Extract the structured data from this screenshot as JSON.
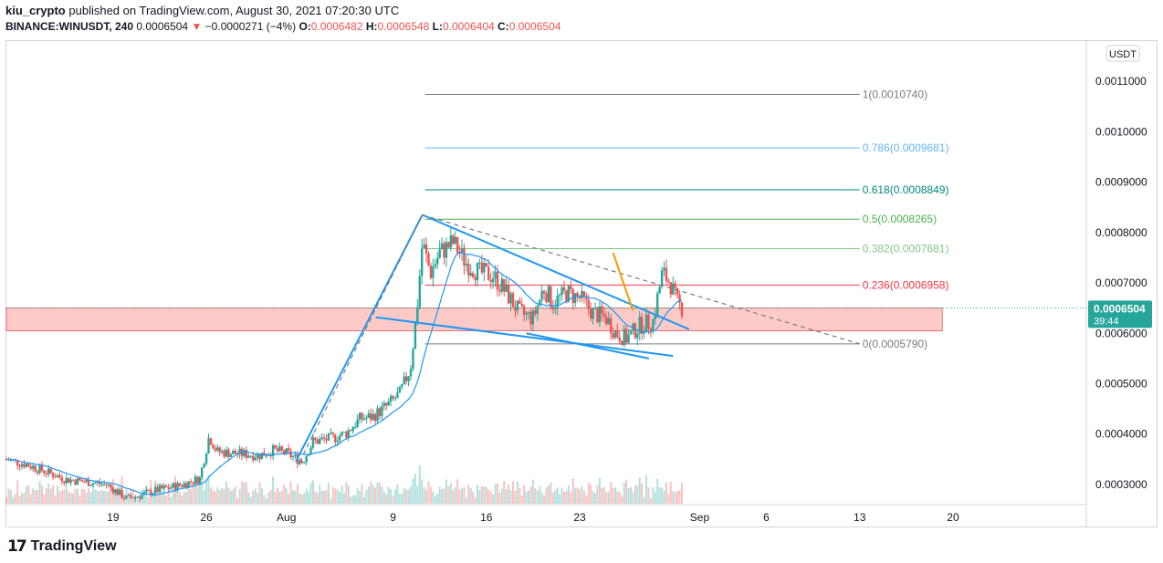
{
  "header": {
    "author": "kiu_crypto",
    "published_text": "published on TradingView.com, August 30, 2021 07:20:30 UTC",
    "symbol": "BINANCE:WINUSDT, 240",
    "last_price": "0.0006504",
    "change_arrow": "▼",
    "change": "−0.0000271 (−4%)",
    "o_label": "O:",
    "o_value": "0.0006482",
    "h_label": "H:",
    "h_value": "0.0006548",
    "l_label": "L:",
    "l_value": "0.0006404",
    "c_label": "C:",
    "c_value": "0.0006504"
  },
  "footer": {
    "logo_icon": "tradingview-logo-icon",
    "brand": "TradingView"
  },
  "colors": {
    "up": "#26a69a",
    "down": "#ef5350",
    "ma": "#2196f3",
    "trend": "#2196f3",
    "orange": "#ff9800",
    "zone_fill": "rgba(244,67,54,0.28)",
    "zone_stroke": "#e57373",
    "price_tag": "#26a69a",
    "grid": "#f0f3fa"
  },
  "chart_data": {
    "type": "candlestick",
    "currency_button": "USDT",
    "price_tag": {
      "price": "0.0006504",
      "countdown": "39:44"
    },
    "y_ticks": [
      "0.0011000",
      "0.0010000",
      "0.0009000",
      "0.0008000",
      "0.0007000",
      "0.0006000",
      "0.0005000",
      "0.0004000",
      "0.0003000"
    ],
    "y_tick_values": [
      0.0011,
      0.001,
      0.0009,
      0.0008,
      0.0007,
      0.0006,
      0.0005,
      0.0004,
      0.0003
    ],
    "ylim": [
      0.00026,
      0.00118
    ],
    "x_ticks": [
      "19",
      "26",
      "Aug",
      "9",
      "16",
      "23",
      "Sep",
      "6",
      "13",
      "20"
    ],
    "x_tick_days": [
      19,
      26,
      32,
      40,
      47,
      54,
      63,
      68,
      75,
      82
    ],
    "xlim": [
      11,
      92
    ],
    "fib_levels": [
      {
        "label": "1(0.0010740)",
        "value": 0.001074,
        "color": "#787b86"
      },
      {
        "label": "0.786(0.0009681)",
        "value": 0.0009681,
        "color": "#64b5f6"
      },
      {
        "label": "0.618(0.0008849)",
        "value": 0.0008849,
        "color": "#00897b"
      },
      {
        "label": "0.5(0.0008265)",
        "value": 0.0008265,
        "color": "#4caf50"
      },
      {
        "label": "0.382(0.0007681)",
        "value": 0.0007681,
        "color": "#81c784"
      },
      {
        "label": "0.236(0.0006958)",
        "value": 0.0006958,
        "color": "#f23645"
      },
      {
        "label": "0(0.0005790)",
        "value": 0.000579,
        "color": "#787b86"
      }
    ],
    "fib_range_days": [
      42.4,
      75.0
    ],
    "zone": {
      "top": 0.00065,
      "bottom": 0.000605,
      "start_day": 11,
      "end_day": 81.2
    },
    "trendlines": [
      {
        "name": "pole",
        "points": [
          [
            32.7,
            0.000345
          ],
          [
            42.2,
            0.000835
          ]
        ],
        "color": "#2196f3",
        "dash": false
      },
      {
        "name": "upper-flag",
        "points": [
          [
            42.2,
            0.000835
          ],
          [
            62.2,
            0.000608
          ]
        ],
        "color": "#2196f3",
        "dash": false
      },
      {
        "name": "lower-flag",
        "points": [
          [
            38.7,
            0.000632
          ],
          [
            61.0,
            0.000555
          ]
        ],
        "color": "#2196f3",
        "dash": false
      },
      {
        "name": "mid-line",
        "points": [
          [
            50,
            0.0006
          ],
          [
            59.2,
            0.00055
          ]
        ],
        "color": "#2196f3",
        "dash": false
      },
      {
        "name": "dashed-top",
        "points": [
          [
            42.2,
            0.000835
          ],
          [
            75.0,
            0.000579
          ]
        ],
        "color": "#787b86",
        "dash": true
      },
      {
        "name": "dashed-left",
        "points": [
          [
            33.0,
            0.000345
          ],
          [
            42.2,
            0.000835
          ]
        ],
        "color": "#787b86",
        "dash": true
      },
      {
        "name": "orange-drop",
        "points": [
          [
            56.5,
            0.00076
          ],
          [
            58.0,
            0.000645
          ]
        ],
        "color": "#ff9800",
        "dash": false
      }
    ],
    "price_path": [
      [
        11,
        0.00035
      ],
      [
        12.5,
        0.00034
      ],
      [
        14,
        0.000325
      ],
      [
        15.5,
        0.00031
      ],
      [
        17,
        0.000305
      ],
      [
        18.5,
        0.0003
      ],
      [
        20,
        0.000272
      ],
      [
        21,
        0.000278
      ],
      [
        22.5,
        0.00029
      ],
      [
        24,
        0.000298
      ],
      [
        25.5,
        0.000312
      ],
      [
        26.2,
        0.000395
      ],
      [
        26.8,
        0.000365
      ],
      [
        28,
        0.000362
      ],
      [
        30,
        0.000358
      ],
      [
        31,
        0.000368
      ],
      [
        32,
        0.000362
      ],
      [
        33.2,
        0.000345
      ],
      [
        34,
        0.000385
      ],
      [
        35.5,
        0.000392
      ],
      [
        36.5,
        0.000402
      ],
      [
        37.5,
        0.00043
      ],
      [
        38.5,
        0.000435
      ],
      [
        39.5,
        0.000455
      ],
      [
        40.5,
        0.00048
      ],
      [
        41.3,
        0.00053
      ],
      [
        41.8,
        0.00065
      ],
      [
        42.2,
        0.00078
      ],
      [
        42.8,
        0.00072
      ],
      [
        43.5,
        0.00076
      ],
      [
        44.5,
        0.00078
      ],
      [
        45.5,
        0.00074
      ],
      [
        46.5,
        0.00072
      ],
      [
        47.5,
        0.000715
      ],
      [
        48.5,
        0.00068
      ],
      [
        49.5,
        0.00064
      ],
      [
        50.5,
        0.00063
      ],
      [
        51.3,
        0.00069
      ],
      [
        52,
        0.00066
      ],
      [
        53,
        0.00068
      ],
      [
        54,
        0.00067
      ],
      [
        55,
        0.00064
      ],
      [
        56,
        0.00063
      ],
      [
        56.7,
        0.0006
      ],
      [
        57.5,
        0.00059
      ],
      [
        58.5,
        0.000615
      ],
      [
        59.5,
        0.000625
      ],
      [
        60.2,
        0.00072
      ],
      [
        60.8,
        0.0007
      ],
      [
        61.3,
        0.00066
      ],
      [
        61.7,
        0.00065
      ]
    ],
    "volume_note": "volume bars"
  }
}
